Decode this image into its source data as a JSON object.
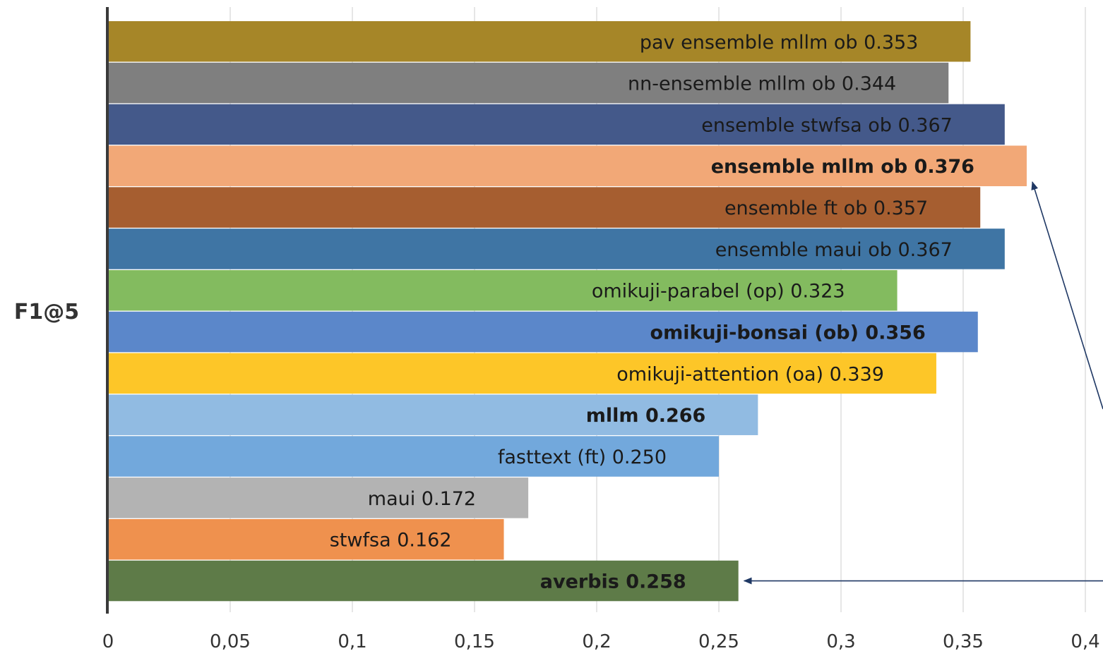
{
  "chart_data": {
    "type": "bar",
    "orientation": "horizontal",
    "ylabel": "F1@5",
    "xlim": [
      0,
      0.4
    ],
    "x_ticks": [
      0,
      0.05,
      0.1,
      0.15,
      0.2,
      0.25,
      0.3,
      0.35,
      0.4
    ],
    "x_tick_labels": [
      "0",
      "0,05",
      "0,1",
      "0,15",
      "0,2",
      "0,25",
      "0,3",
      "0,35",
      "0,4"
    ],
    "grid": "vertical",
    "bars": [
      {
        "label": "pav ensemble mllm ob 0.353",
        "value": 0.353,
        "color": "#a68628",
        "bold": false
      },
      {
        "label": "nn-ensemble mllm ob 0.344",
        "value": 0.344,
        "color": "#7f7f7f",
        "bold": false
      },
      {
        "label": "ensemble stwfsa ob 0.367",
        "value": 0.367,
        "color": "#44598a",
        "bold": false
      },
      {
        "label": "ensemble mllm ob 0.376",
        "value": 0.376,
        "color": "#f2a877",
        "bold": true
      },
      {
        "label": "ensemble ft ob 0.357",
        "value": 0.357,
        "color": "#a65e30",
        "bold": false
      },
      {
        "label": "ensemble maui ob 0.367",
        "value": 0.367,
        "color": "#3f75a4",
        "bold": false
      },
      {
        "label": "omikuji-parabel (op) 0.323",
        "value": 0.323,
        "color": "#83bb5f",
        "bold": false
      },
      {
        "label": "omikuji-bonsai (ob) 0.356",
        "value": 0.356,
        "color": "#5b87ca",
        "bold": true
      },
      {
        "label": "omikuji-attention (oa) 0.339",
        "value": 0.339,
        "color": "#fdc628",
        "bold": false
      },
      {
        "label": "mllm 0.266",
        "value": 0.266,
        "color": "#91bbe2",
        "bold": true
      },
      {
        "label": "fasttext (ft) 0.250",
        "value": 0.25,
        "color": "#72a8dc",
        "bold": false
      },
      {
        "label": "maui 0.172",
        "value": 0.172,
        "color": "#b3b3b3",
        "bold": false
      },
      {
        "label": "stwfsa 0.162",
        "value": 0.162,
        "color": "#ef914e",
        "bold": false
      },
      {
        "label": "averbis 0.258",
        "value": 0.258,
        "color": "#5e7b48",
        "bold": true
      }
    ],
    "annotation_arrows": {
      "color": "#1f3864",
      "targets": [
        "ensemble mllm ob 0.376",
        "averbis 0.258"
      ]
    }
  }
}
